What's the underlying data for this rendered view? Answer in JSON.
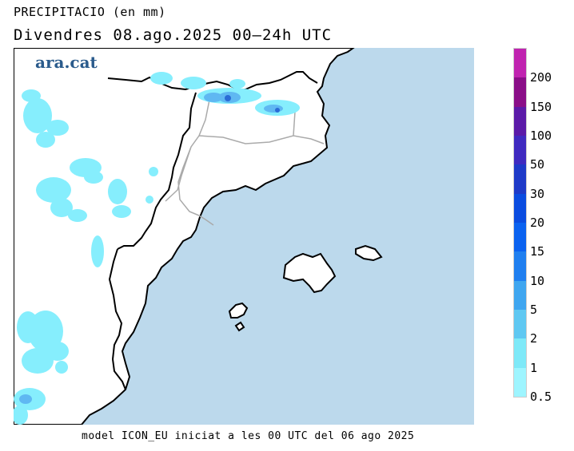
{
  "header": {
    "variable": "PRECIPITACIO (en mm)",
    "date_line": "Divendres  08.ago.2025 00–24h UTC"
  },
  "logo": {
    "text": "ara.cat"
  },
  "footer": {
    "model_note": "model ICON_EU iniciat a les 00 UTC del 06 ago 2025"
  },
  "legend": {
    "labels": [
      "0.5",
      "1",
      "2",
      "5",
      "10",
      "15",
      "20",
      "30",
      "50",
      "100",
      "150",
      "200"
    ],
    "colors": [
      "#9ef5ff",
      "#7ee9f8",
      "#5fc8f2",
      "#3fa6f0",
      "#1f7ff0",
      "#0a62f0",
      "#0a4ce0",
      "#1e3ac8",
      "#3f2ac0",
      "#5b1aa8",
      "#8a0e88",
      "#c023b0"
    ]
  },
  "map_colors": {
    "sea": "#bcd9ec",
    "land": "#ffffff",
    "precip_light": "#86eefd",
    "precip_mid": "#5fb8f2",
    "precip_heavy": "#2a6cd6",
    "coast": "#000000",
    "border": "#aaaaaa"
  }
}
